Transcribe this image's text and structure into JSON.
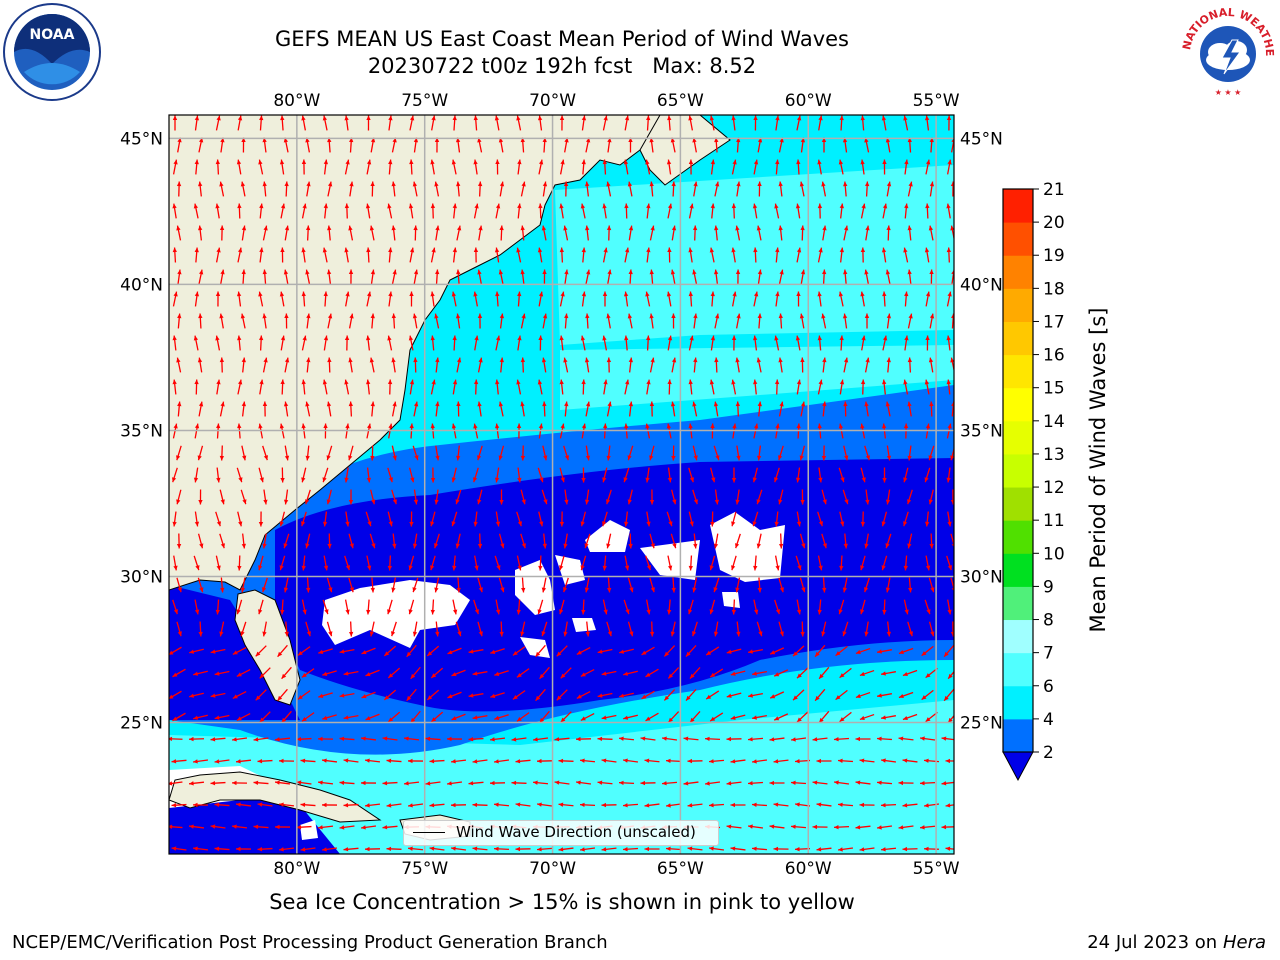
{
  "header": {
    "title_line1": "GEFS MEAN US East Coast Mean Period of Wind Waves",
    "title_line2": "20230722 t00z 192h fcst   Max: 8.52"
  },
  "logos": {
    "left": {
      "text": "NOAA",
      "icon": "noaa-logo-icon"
    },
    "right": {
      "text": "NATIONAL WEATHER SERVICE",
      "icon": "nws-logo-icon"
    }
  },
  "map": {
    "lon_labels": [
      "80°W",
      "75°W",
      "70°W",
      "65°W",
      "60°W",
      "55°W"
    ],
    "lon_values": [
      -80,
      -75,
      -70,
      -65,
      -60,
      -55
    ],
    "lat_labels": [
      "45°N",
      "40°N",
      "35°N",
      "30°N",
      "25°N"
    ],
    "lat_values": [
      45,
      40,
      35,
      30,
      25
    ],
    "extent": {
      "lon_min": -85,
      "lon_max": -54.3,
      "lat_min": 20.5,
      "lat_max": 45.8
    },
    "legend": "Wind Wave Direction (unscaled)",
    "colors": {
      "land": "#efefdc",
      "ocean_2_4": "#0070ff",
      "ocean_4_6": "#00f0ff",
      "ocean_6_8": "#50ffff",
      "ocean_below_2": "#0000e8",
      "arrows": "#ff0000",
      "grid": "#b0b0b0"
    }
  },
  "colorbar": {
    "label": "Mean Period of Wind Waves [s]",
    "ticks": [
      "2",
      "4",
      "6",
      "7",
      "8",
      "9",
      "10",
      "11",
      "12",
      "13",
      "14",
      "15",
      "16",
      "17",
      "18",
      "19",
      "20",
      "21"
    ],
    "colors": [
      "#0070ff",
      "#00f0ff",
      "#50ffff",
      "#a0ffff",
      "#50f07a",
      "#00e020",
      "#50e000",
      "#a0e000",
      "#c8ff00",
      "#e6ff00",
      "#ffff00",
      "#ffe600",
      "#ffc800",
      "#ffaa00",
      "#ff8200",
      "#ff5000",
      "#ff2000"
    ],
    "extend_color": "#0000e8"
  },
  "subtitle": "Sea Ice Concentration > 15% is shown in pink to yellow",
  "footer": {
    "left": "NCEP/EMC/Verification Post Processing Product Generation Branch",
    "right_prefix": "24 Jul 2023 on ",
    "right_machine": "Hera"
  }
}
